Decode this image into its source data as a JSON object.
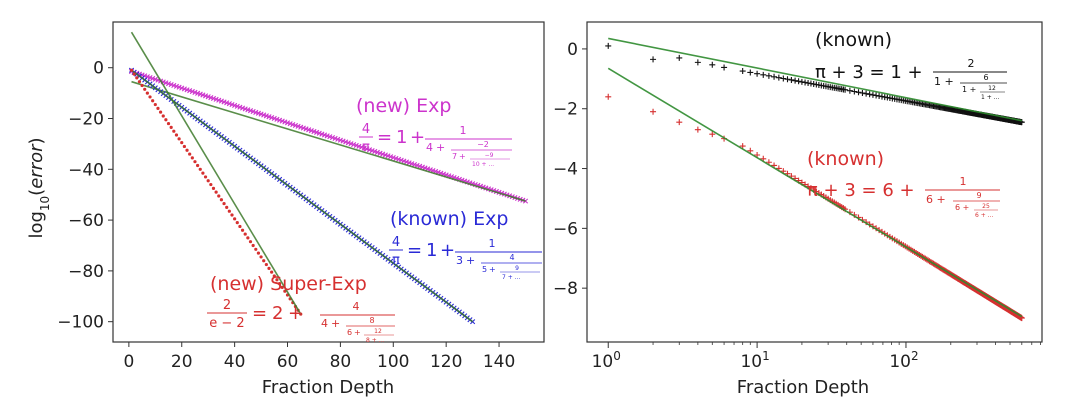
{
  "chart_data": [
    {
      "type": "line",
      "xlabel": "Fraction Depth",
      "ylabel_base": "log",
      "ylabel_sub": "10",
      "ylabel_arg": "error",
      "xlim": [
        -6,
        157
      ],
      "ylim": [
        -108,
        18
      ],
      "x_ticks": [
        0,
        20,
        40,
        60,
        80,
        100,
        120,
        140
      ],
      "y_ticks": [
        0,
        -20,
        -40,
        -60,
        -80,
        -100
      ],
      "y_tick_labels": [
        "0",
        "−20",
        "−40",
        "−60",
        "−80",
        "−100"
      ],
      "grid": false,
      "series": [
        {
          "name": "(new) Exp",
          "color": "#cc33cc",
          "fit_color": "#3d7a2a",
          "marker": "x",
          "points_from": [
            1,
            -1.5
          ],
          "points_to": [
            150,
            -52.5
          ],
          "n_points": 150,
          "fit": [
            [
              1,
              -5.5
            ],
            [
              150,
              -52.5
            ]
          ],
          "formula": {
            "lhs_num": "4",
            "lhs_den": "π",
            "rhs_int": "1",
            "a1": "1",
            "b1": "4",
            "a2": "−2",
            "b2": "7",
            "a3": "−9",
            "b3": "10 + ..."
          }
        },
        {
          "name": "(known) Exp",
          "color": "#2a2ad6",
          "fit_color": "#3d7a2a",
          "marker": "x",
          "points_from": [
            1,
            -1
          ],
          "points_to": [
            130,
            -100
          ],
          "n_points": 130,
          "fit": [
            [
              1,
              -1
            ],
            [
              130,
              -100
            ]
          ],
          "formula": {
            "lhs_num": "4",
            "lhs_den": "π",
            "rhs_int": "1",
            "a1": "1",
            "b1": "3",
            "a2": "4",
            "b2": "5",
            "a3": "9",
            "b3": "7 + ..."
          }
        },
        {
          "name": "(new) Super-Exp",
          "color": "#d63030",
          "fit_color": "#3d7a2a",
          "marker": "dot",
          "points_from": [
            1,
            -1
          ],
          "points_to": [
            65,
            -97
          ],
          "n_points": 65,
          "fit": [
            [
              1,
              14
            ],
            [
              65,
              -97
            ]
          ],
          "formula": {
            "lhs_num": "2",
            "lhs_den": "e − 2",
            "rhs_int": "2",
            "a1": "4",
            "b1": "4",
            "a2": "8",
            "b2": "6",
            "a3": "12",
            "b3": "8 + ..."
          }
        }
      ]
    },
    {
      "type": "scatter",
      "xscale": "log",
      "xlabel": "Fraction Depth",
      "xlim": [
        0.72,
        820
      ],
      "ylim": [
        -9.8,
        0.9
      ],
      "x_ticks": [
        1,
        10,
        100
      ],
      "x_tick_labels": [
        {
          "base": "10",
          "exp": "0"
        },
        {
          "base": "10",
          "exp": "1"
        },
        {
          "base": "10",
          "exp": "2"
        }
      ],
      "y_ticks": [
        0,
        -2,
        -4,
        -6,
        -8
      ],
      "y_tick_labels": [
        "0",
        "−2",
        "−4",
        "−6",
        "−8"
      ],
      "grid": false,
      "series": [
        {
          "name": "(known)",
          "color": "#111111",
          "fit_color": "#2e8b2e",
          "marker": "+",
          "x_range": [
            1,
            600
          ],
          "points": [
            [
              1,
              0.1
            ],
            [
              2,
              -0.35
            ],
            [
              3,
              -0.3
            ],
            [
              4,
              -0.45
            ],
            [
              5,
              -0.53
            ],
            [
              6,
              -0.62
            ],
            [
              8,
              -0.74
            ],
            [
              600,
              -2.45
            ]
          ],
          "fit": [
            [
              1,
              0.35
            ],
            [
              600,
              -2.4
            ]
          ],
          "formula": {
            "lhs": "π + 3 = 1 +",
            "a1": "2",
            "b1": "1 +",
            "a2": "6",
            "b2": "1 +",
            "a3": "12",
            "b3": "1 + ..."
          }
        },
        {
          "name": "(known)",
          "color": "#d63030",
          "fit_color": "#2e8b2e",
          "marker": "+",
          "x_range": [
            1,
            600
          ],
          "points": [
            [
              1,
              -1.6
            ],
            [
              2,
              -2.1
            ],
            [
              3,
              -2.45
            ],
            [
              4,
              -2.7
            ],
            [
              5,
              -2.85
            ],
            [
              6,
              -3.0
            ],
            [
              8,
              -3.25
            ],
            [
              600,
              -9.0
            ]
          ],
          "fit": [
            [
              1,
              -0.65
            ],
            [
              600,
              -8.95
            ]
          ],
          "formula": {
            "lhs": "π + 3 = 6 +",
            "a1": "1",
            "b1": "6 +",
            "a2": "9",
            "b2": "6 +",
            "a3": "25",
            "b3": "6 + ..."
          }
        }
      ]
    }
  ]
}
